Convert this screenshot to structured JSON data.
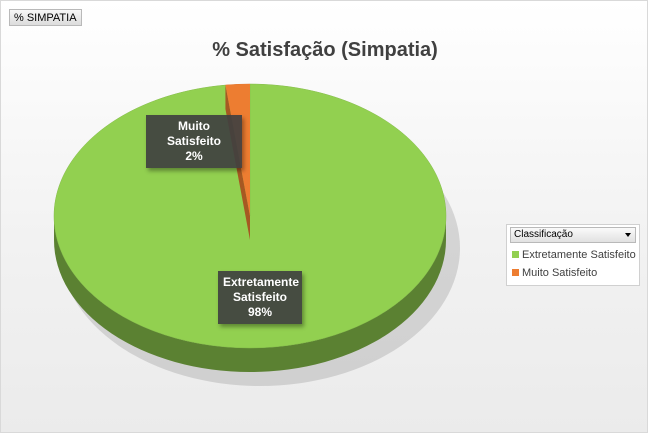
{
  "field_button": "% SIMPATIA",
  "legend": {
    "header": "Classificação",
    "items": [
      {
        "label": "Extretamente Satisfeito",
        "color": "#92d050"
      },
      {
        "label": "Muito Satisfeito",
        "color": "#ed7d31"
      }
    ]
  },
  "chart_data": {
    "type": "pie",
    "title": "% Satisfação (Simpatia)",
    "categories": [
      "Extretamente Satisfeito",
      "Muito Satisfeito"
    ],
    "values": [
      98,
      2
    ],
    "data_labels": [
      {
        "category": "Extretamente Satisfeito",
        "line1": "Extretamente",
        "line2": "Satisfeito",
        "percent": "98%"
      },
      {
        "category": "Muito Satisfeito",
        "line1": "Muito Satisfeito",
        "percent": "2%"
      }
    ],
    "colors": [
      "#92d050",
      "#ed7d31"
    ],
    "legend_position": "right",
    "style": "3d"
  }
}
